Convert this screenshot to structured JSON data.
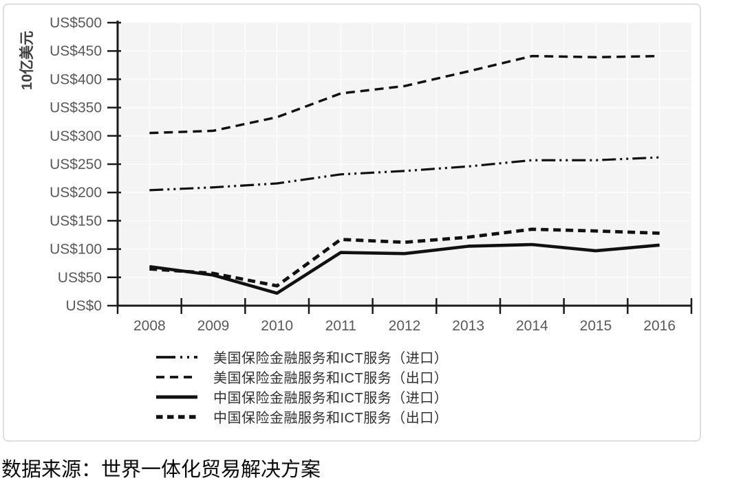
{
  "chart_data": {
    "type": "line",
    "title": "",
    "ylabel": "10亿美元",
    "xlabel": "",
    "categories": [
      "2008",
      "2009",
      "2010",
      "2011",
      "2012",
      "2013",
      "2014",
      "2015",
      "2016"
    ],
    "ylim": [
      0,
      500
    ],
    "y_tick_step": 50,
    "y_tick_labels": [
      "US$0",
      "US$50",
      "US$100",
      "US$150",
      "US$200",
      "US$250",
      "US$300",
      "US$350",
      "US$400",
      "US$450",
      "US$500"
    ],
    "grid": true,
    "legend_position": "bottom-left",
    "line_color": "#111111",
    "series": [
      {
        "name": "美国保险金融服务和ICT服务（进口）",
        "style": "dash-dot-dot",
        "values": [
          204,
          209,
          216,
          232,
          238,
          246,
          257,
          257,
          262
        ]
      },
      {
        "name": "美国保险金融服务和ICT服务（出口）",
        "style": "dashed",
        "values": [
          305,
          309,
          333,
          375,
          388,
          414,
          441,
          439,
          441
        ]
      },
      {
        "name": "中国保险金融服务和ICT服务（进口）",
        "style": "solid",
        "values": [
          69,
          54,
          22,
          94,
          92,
          105,
          108,
          97,
          107
        ]
      },
      {
        "name": "中国保险金融服务和ICT服务（出口）",
        "style": "thick-dashed",
        "values": [
          65,
          57,
          35,
          117,
          112,
          121,
          135,
          132,
          128
        ]
      }
    ]
  },
  "source_note": "数据来源：世界一体化贸易解决方案",
  "colors": {
    "axis": "#1a1a1a",
    "tick_label": "#595959",
    "plot_background": "#f4f4f4",
    "gridline": "#fbfbfb",
    "frame": "#dedede"
  }
}
